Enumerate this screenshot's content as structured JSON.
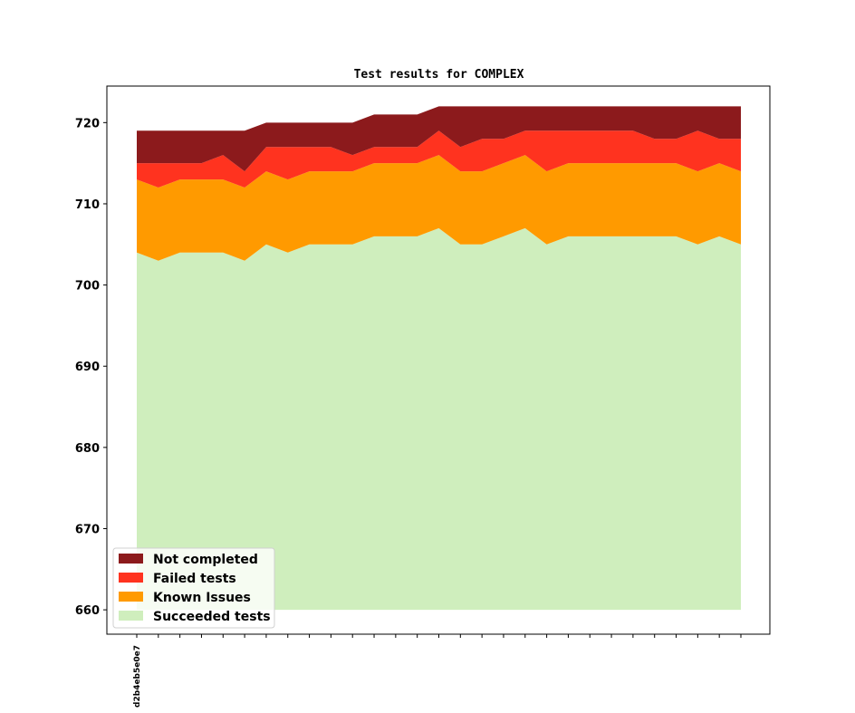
{
  "chart_data": {
    "type": "area",
    "stacked": true,
    "title": "Test results for COMPLEX",
    "xlabel": "",
    "ylabel": "",
    "ylim": [
      657,
      724.5
    ],
    "yticks": [
      660,
      670,
      680,
      690,
      700,
      710,
      720
    ],
    "baseline": 660,
    "grid": false,
    "legend_position": "lower-left",
    "x": [
      0,
      1,
      2,
      3,
      4,
      5,
      6,
      7,
      8,
      9,
      10,
      11,
      12,
      13,
      14,
      15,
      16,
      17,
      18,
      19,
      20,
      21,
      22,
      23,
      24,
      25,
      26,
      27,
      28
    ],
    "x_tick_labels": [
      "d2b4eb5e0e7",
      "",
      "",
      "",
      "",
      "",
      "",
      "",
      "",
      "",
      "",
      "",
      "",
      "",
      "",
      "",
      "",
      "",
      "",
      "",
      "",
      "",
      "",
      "",
      "",
      "",
      "",
      "",
      ""
    ],
    "series": [
      {
        "name": "Succeeded tests",
        "color": "#cfeebd",
        "cumulative_top": [
          704,
          703,
          704,
          704,
          704,
          703,
          705,
          704,
          705,
          705,
          705,
          706,
          706,
          706,
          707,
          705,
          705,
          706,
          707,
          705,
          706,
          706,
          706,
          706,
          706,
          706,
          705,
          706,
          705
        ]
      },
      {
        "name": "Known Issues",
        "color": "#ff9a00",
        "cumulative_top": [
          713,
          712,
          713,
          713,
          713,
          712,
          714,
          713,
          714,
          714,
          714,
          715,
          715,
          715,
          716,
          714,
          714,
          715,
          716,
          714,
          715,
          715,
          715,
          715,
          715,
          715,
          714,
          715,
          714
        ]
      },
      {
        "name": "Failed tests",
        "color": "#ff331f",
        "cumulative_top": [
          715,
          715,
          715,
          715,
          716,
          714,
          717,
          717,
          717,
          717,
          716,
          717,
          717,
          717,
          719,
          717,
          718,
          718,
          719,
          719,
          719,
          719,
          719,
          719,
          718,
          718,
          719,
          718,
          718
        ]
      },
      {
        "name": "Not completed",
        "color": "#8c1a1c",
        "cumulative_top": [
          719,
          719,
          719,
          719,
          719,
          719,
          720,
          720,
          720,
          720,
          720,
          721,
          721,
          721,
          722,
          722,
          722,
          722,
          722,
          722,
          722,
          722,
          722,
          722,
          722,
          722,
          722,
          722,
          722
        ]
      }
    ],
    "legend": [
      "Not completed",
      "Failed tests",
      "Known Issues",
      "Succeeded tests"
    ]
  }
}
